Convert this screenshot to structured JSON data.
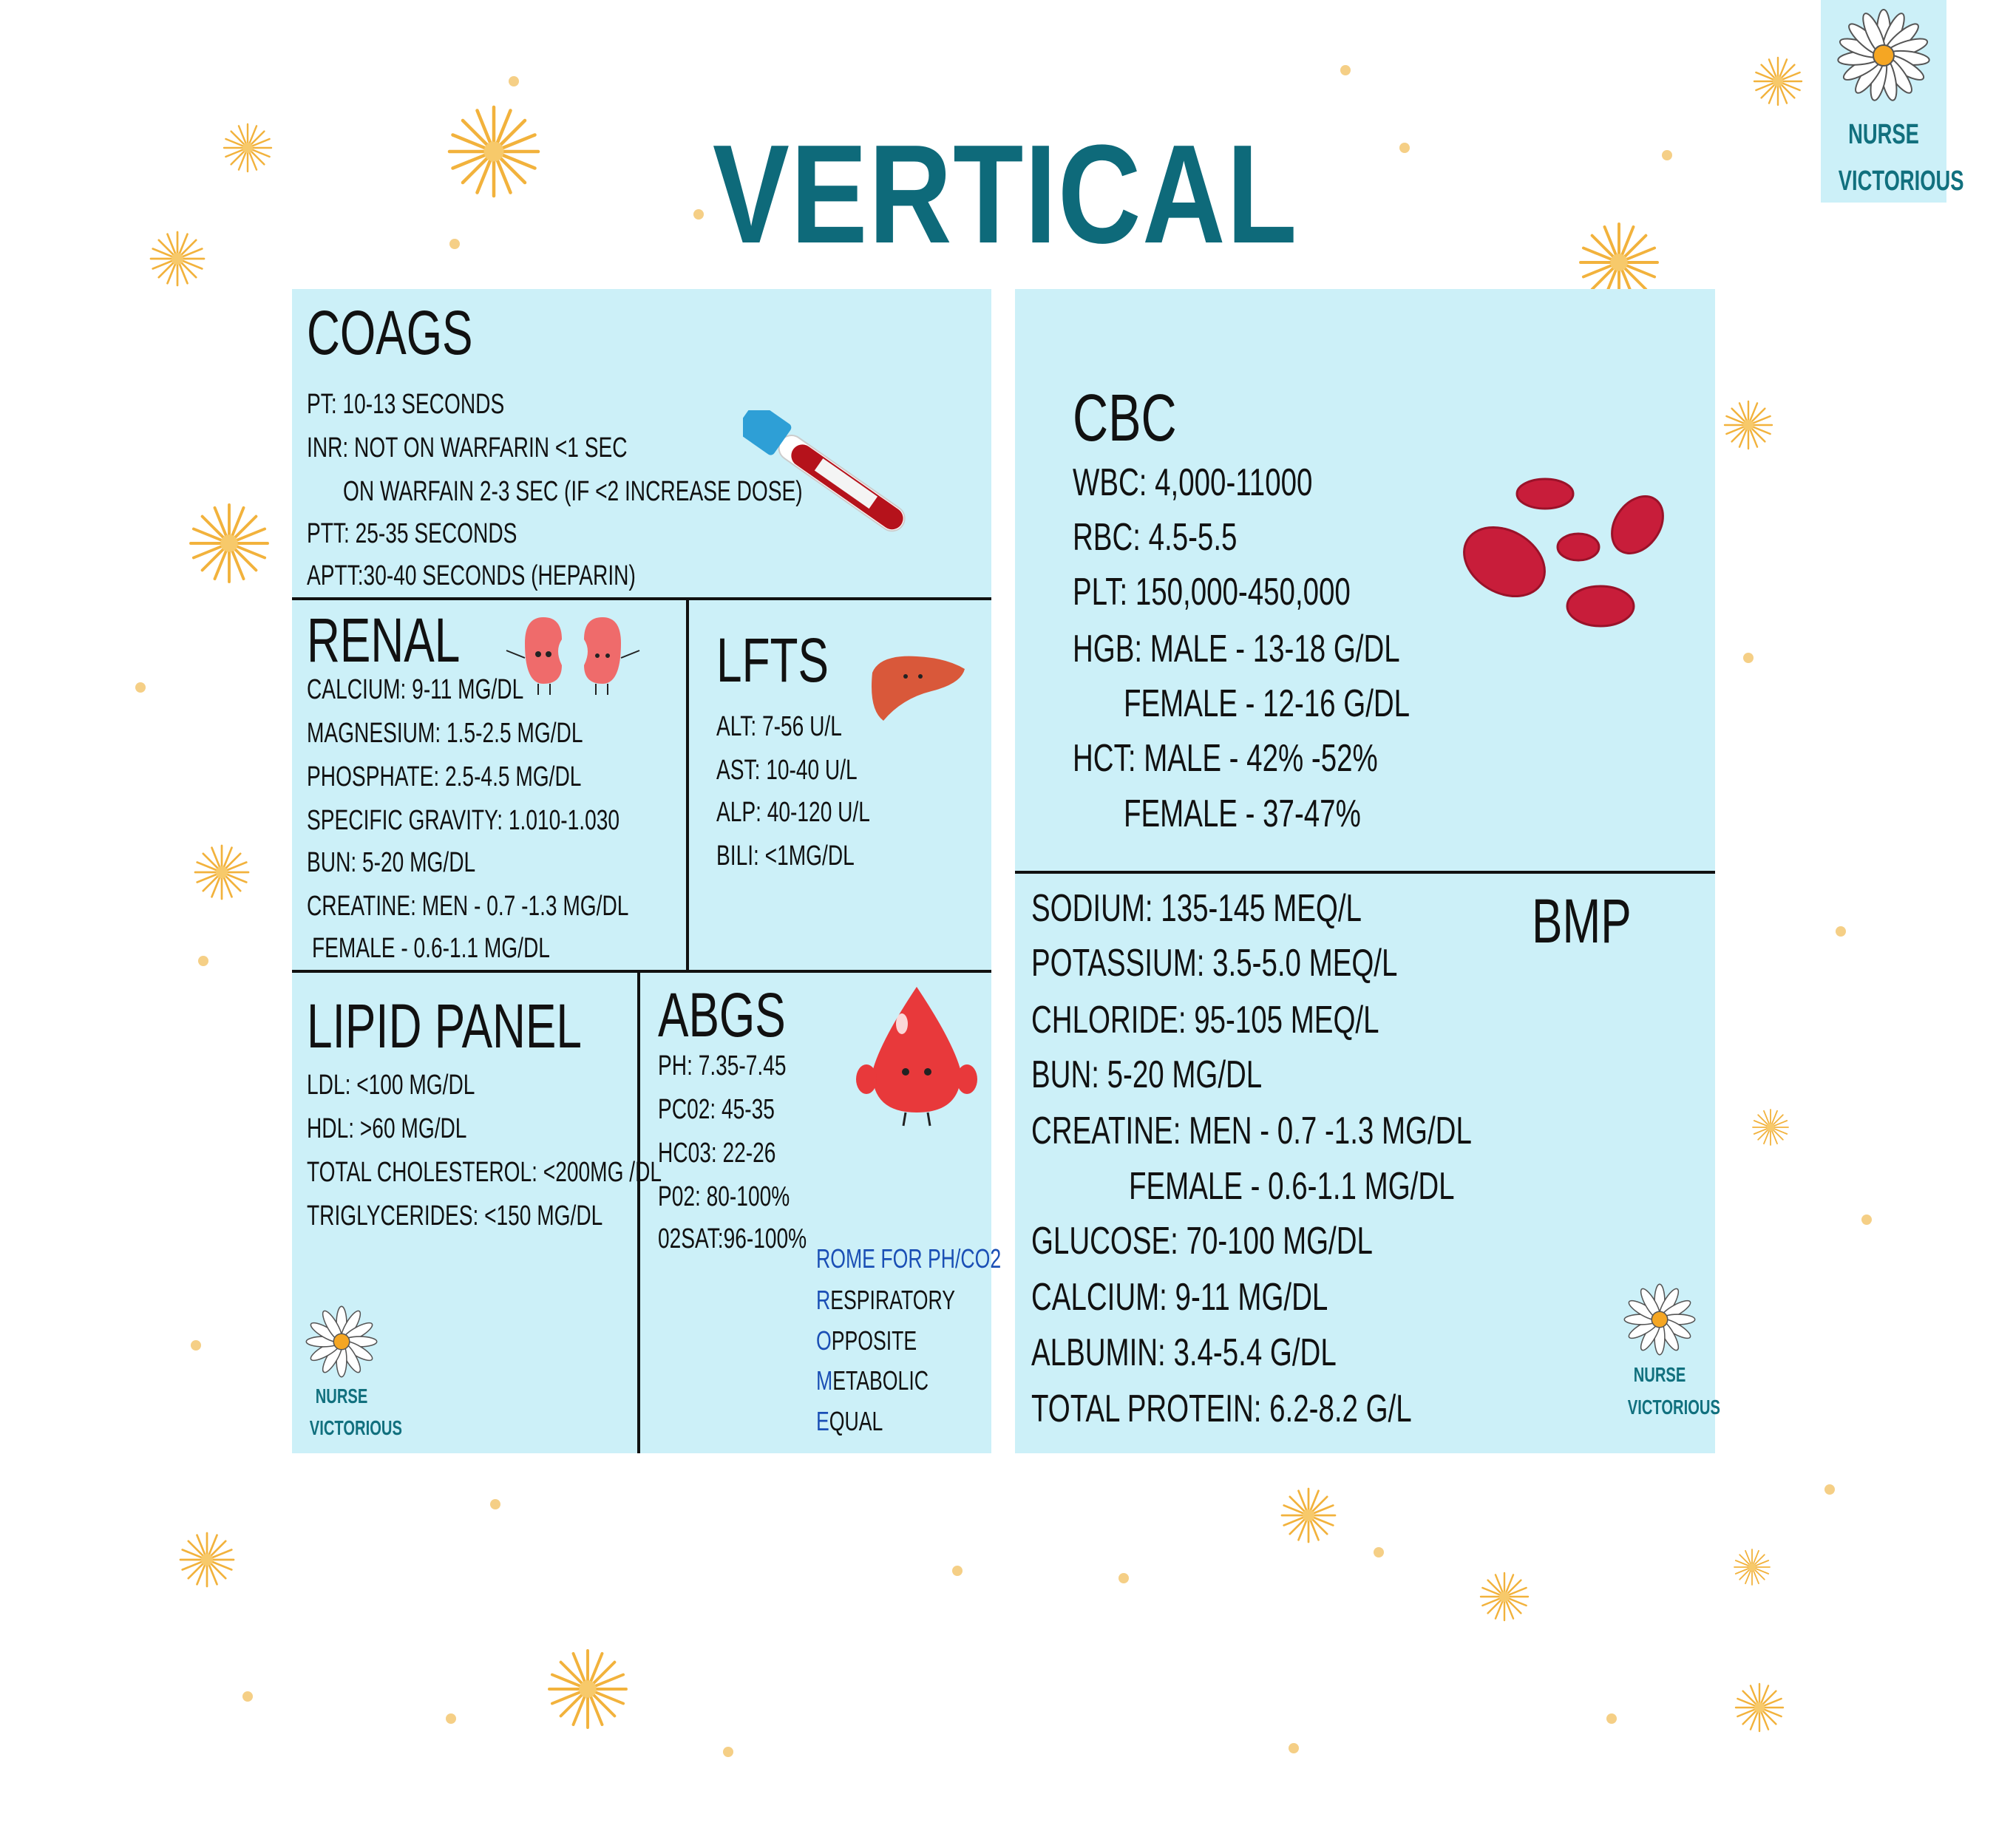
{
  "title": "VERTICAL",
  "brand": {
    "line1": "NURSE",
    "line2": "VICTORIOUS",
    "icon": "daisy-icon"
  },
  "colors": {
    "title": "#0e6a7a",
    "panel": "#ccf0f8",
    "mnemonic_accent": "#1a4fb5",
    "star": "#f2b23c"
  },
  "coags": {
    "heading": "COAGS",
    "lines": [
      "PT: 10-13 SECONDS",
      "INR: NOT ON WARFARIN <1 SEC",
      "ON WARFAIN 2-3 SEC (IF <2 INCREASE DOSE)",
      "PTT: 25-35 SECONDS",
      "APTT:30-40 SECONDS (HEPARIN)"
    ],
    "icon": "test-tube-icon"
  },
  "renal": {
    "heading": "RENAL",
    "lines": [
      "CALCIUM: 9-11 MG/DL",
      "MAGNESIUM: 1.5-2.5 MG/DL",
      "PHOSPHATE: 2.5-4.5 MG/DL",
      "SPECIFIC GRAVITY: 1.010-1.030",
      "BUN: 5-20 MG/DL",
      "CREATINE: MEN - 0.7 -1.3 MG/DL",
      "FEMALE - 0.6-1.1 MG/DL"
    ],
    "icon": "kidneys-icon"
  },
  "lfts": {
    "heading": "LFTS",
    "lines": [
      "ALT: 7-56 U/L",
      "AST: 10-40 U/L",
      "ALP: 40-120 U/L",
      "BILI: <1MG/DL"
    ],
    "icon": "liver-icon"
  },
  "lipid": {
    "heading": "LIPID PANEL",
    "lines": [
      "LDL: <100 MG/DL",
      "HDL: >60 MG/DL",
      "TOTAL CHOLESTEROL: <200MG /DL",
      "TRIGLYCERIDES: <150 MG/DL"
    ]
  },
  "abgs": {
    "heading": "ABGS",
    "lines": [
      "PH: 7.35-7.45",
      "PC02: 45-35",
      "HC03: 22-26",
      "P02: 80-100%",
      "02SAT:96-100%"
    ],
    "icon": "blood-drop-icon",
    "mnemonic": {
      "title": "ROME FOR PH/CO2",
      "words": [
        {
          "initial": "R",
          "rest": "ESPIRATORY"
        },
        {
          "initial": "O",
          "rest": "PPOSITE"
        },
        {
          "initial": "M",
          "rest": "ETABOLIC"
        },
        {
          "initial": "E",
          "rest": "QUAL"
        }
      ]
    }
  },
  "cbc": {
    "heading": "CBC",
    "lines": [
      "WBC: 4,000-11000",
      "RBC: 4.5-5.5",
      "PLT: 150,000-450,000",
      "HGB: MALE - 13-18 G/DL",
      "FEMALE - 12-16 G/DL",
      "HCT: MALE - 42% -52%",
      "FEMALE -  37-47%"
    ],
    "icon": "red-blood-cells-icon"
  },
  "bmp": {
    "heading": "BMP",
    "lines": [
      "SODIUM: 135-145 MEQ/L",
      "POTASSIUM: 3.5-5.0 MEQ/L",
      "CHLORIDE: 95-105 MEQ/L",
      "BUN: 5-20 MG/DL",
      "CREATINE: MEN - 0.7 -1.3 MG/DL",
      "FEMALE - 0.6-1.1 MG/DL",
      "GLUCOSE: 70-100 MG/DL",
      "CALCIUM: 9-11 MG/DL",
      "ALBUMIN: 3.4-5.4 G/DL",
      "TOTAL PROTEIN: 6.2-8.2 G/L"
    ]
  }
}
